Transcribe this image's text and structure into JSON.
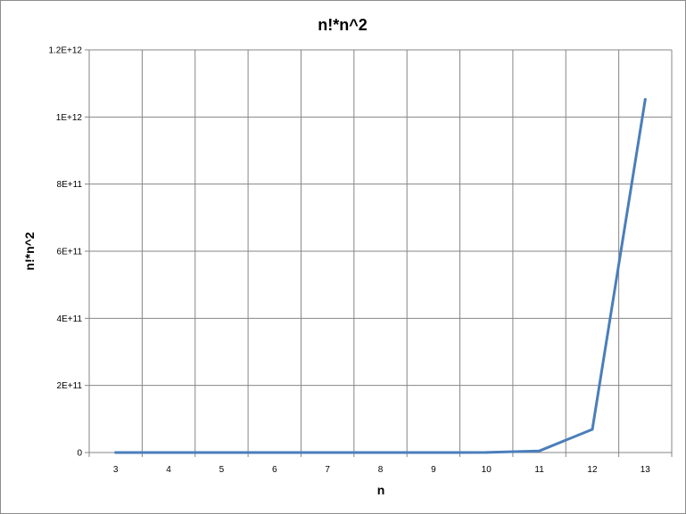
{
  "chart_data": {
    "type": "line",
    "title": "n!*n^2",
    "xlabel": "n",
    "ylabel": "n!*n^2",
    "categories": [
      "3",
      "4",
      "5",
      "6",
      "7",
      "8",
      "9",
      "10",
      "11",
      "12",
      "13"
    ],
    "series": [
      {
        "values": [
          54,
          384,
          3000,
          25920,
          246960,
          2580480,
          29393280,
          362880000,
          4829932800,
          68976230400,
          1052366515200
        ],
        "color": "#4a7ebb"
      }
    ],
    "ylim": [
      0,
      1200000000000
    ],
    "yticks": [
      {
        "value": 0,
        "label": "0"
      },
      {
        "value": 200000000000,
        "label": "2E+11"
      },
      {
        "value": 400000000000,
        "label": "4E+11"
      },
      {
        "value": 600000000000,
        "label": "6E+11"
      },
      {
        "value": 800000000000,
        "label": "8E+11"
      },
      {
        "value": 1000000000000,
        "label": "1E+12"
      },
      {
        "value": 1200000000000,
        "label": "1.2E+12"
      }
    ],
    "grid": true,
    "legend": "none"
  }
}
